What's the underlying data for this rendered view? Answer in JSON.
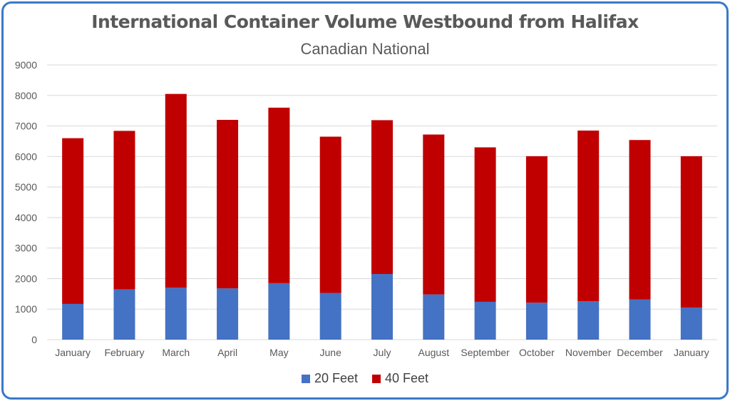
{
  "colors": {
    "series_20": "#4472c4",
    "series_40": "#c00000",
    "grid": "#d9d9d9",
    "frame": "#3a78c9"
  },
  "chart_data": {
    "type": "bar",
    "stacked": true,
    "title": "International Container Volume Westbound from Halifax",
    "subtitle": "Canadian National",
    "categories": [
      "January",
      "February",
      "March",
      "April",
      "May",
      "June",
      "July",
      "August",
      "September",
      "October",
      "November",
      "December",
      "January"
    ],
    "series": [
      {
        "name": "20 Feet",
        "values": [
          1170,
          1650,
          1700,
          1680,
          1850,
          1530,
          2150,
          1480,
          1240,
          1210,
          1260,
          1320,
          1050
        ]
      },
      {
        "name": "40 Feet",
        "values": [
          5430,
          5190,
          6350,
          5520,
          5750,
          5120,
          5040,
          5240,
          5060,
          4800,
          5590,
          5220,
          4960
        ]
      }
    ],
    "ylim": [
      0,
      9000
    ],
    "yticks": [
      0,
      1000,
      2000,
      3000,
      4000,
      5000,
      6000,
      7000,
      8000,
      9000
    ],
    "grid": true,
    "legend": "bottom"
  }
}
